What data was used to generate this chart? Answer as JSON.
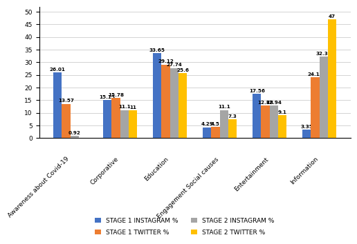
{
  "categories": [
    "Awareness about Covid-19",
    "Corporative",
    "Education",
    "Engagement Social causes",
    "Entertainment",
    "Information"
  ],
  "series": {
    "STAGE 1 INSTAGRAM %": [
      26.01,
      15.15,
      33.65,
      4.29,
      17.56,
      3.35
    ],
    "STAGE 1 TWITTER %": [
      13.57,
      15.78,
      29.12,
      4.5,
      12.88,
      24.16
    ],
    "STAGE 2 INSTAGRAM %": [
      0.92,
      11.1,
      27.74,
      11.1,
      12.94,
      32.36
    ],
    "STAGE 2 TWITTER %": [
      0,
      11,
      25.6,
      7.3,
      9.1,
      47
    ]
  },
  "colors": {
    "STAGE 1 INSTAGRAM %": "#4472C4",
    "STAGE 1 TWITTER %": "#ED7D31",
    "STAGE 2 INSTAGRAM %": "#A5A5A5",
    "STAGE 2 TWITTER %": "#FFC000"
  },
  "ylim": [
    0,
    52
  ],
  "yticks": [
    0,
    5,
    10,
    15,
    20,
    25,
    30,
    35,
    40,
    45,
    50
  ],
  "bar_width": 0.17,
  "label_fontsize": 5.2,
  "legend_fontsize": 6.5,
  "tick_fontsize": 6.5,
  "cat_fontsize": 6.5,
  "background_color": "#FFFFFF"
}
